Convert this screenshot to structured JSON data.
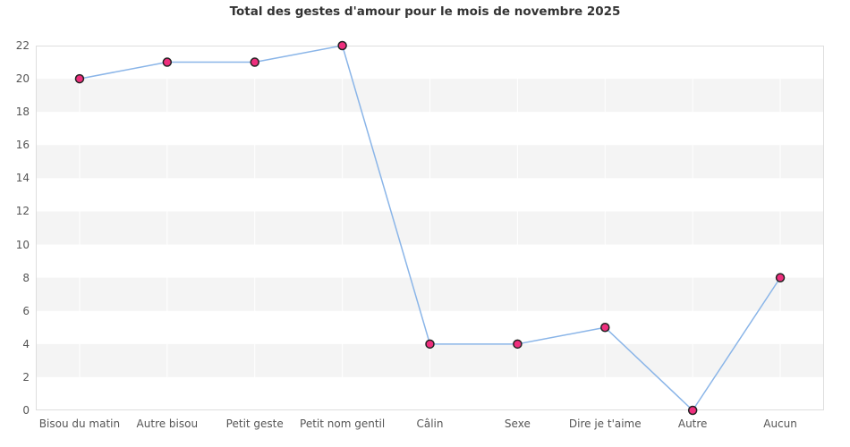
{
  "title": "Total des gestes d'amour pour le mois de novembre 2025",
  "chart_data": {
    "type": "line",
    "title": "Total des gestes d'amour pour le mois de novembre 2025",
    "categories": [
      "Bisou du matin",
      "Autre bisou",
      "Petit geste",
      "Petit nom gentil",
      "Câlin",
      "Sexe",
      "Dire je t'aime",
      "Autre",
      "Aucun"
    ],
    "values": [
      20,
      21,
      21,
      22,
      4,
      4,
      5,
      0,
      8
    ],
    "xlabel": "",
    "ylabel": "",
    "ylim": [
      0,
      22
    ],
    "ytick_step": 2,
    "ytick_labels": [
      "0",
      "2",
      "4",
      "6",
      "8",
      "10",
      "12",
      "14",
      "16",
      "18",
      "20",
      "22"
    ],
    "legend": "none",
    "grid": "alternating horizontal bands with white vertical gridlines at category centers"
  },
  "colors": {
    "line": "#8ab5e8",
    "marker_fill": "#ee2f7d",
    "marker_stroke": "#222222",
    "band": "#f4f4f4",
    "plot_border": "#dedede",
    "vertical_gridline": "#ffffff",
    "title_text": "#333333",
    "tick_text": "#555555",
    "background": "#ffffff"
  }
}
